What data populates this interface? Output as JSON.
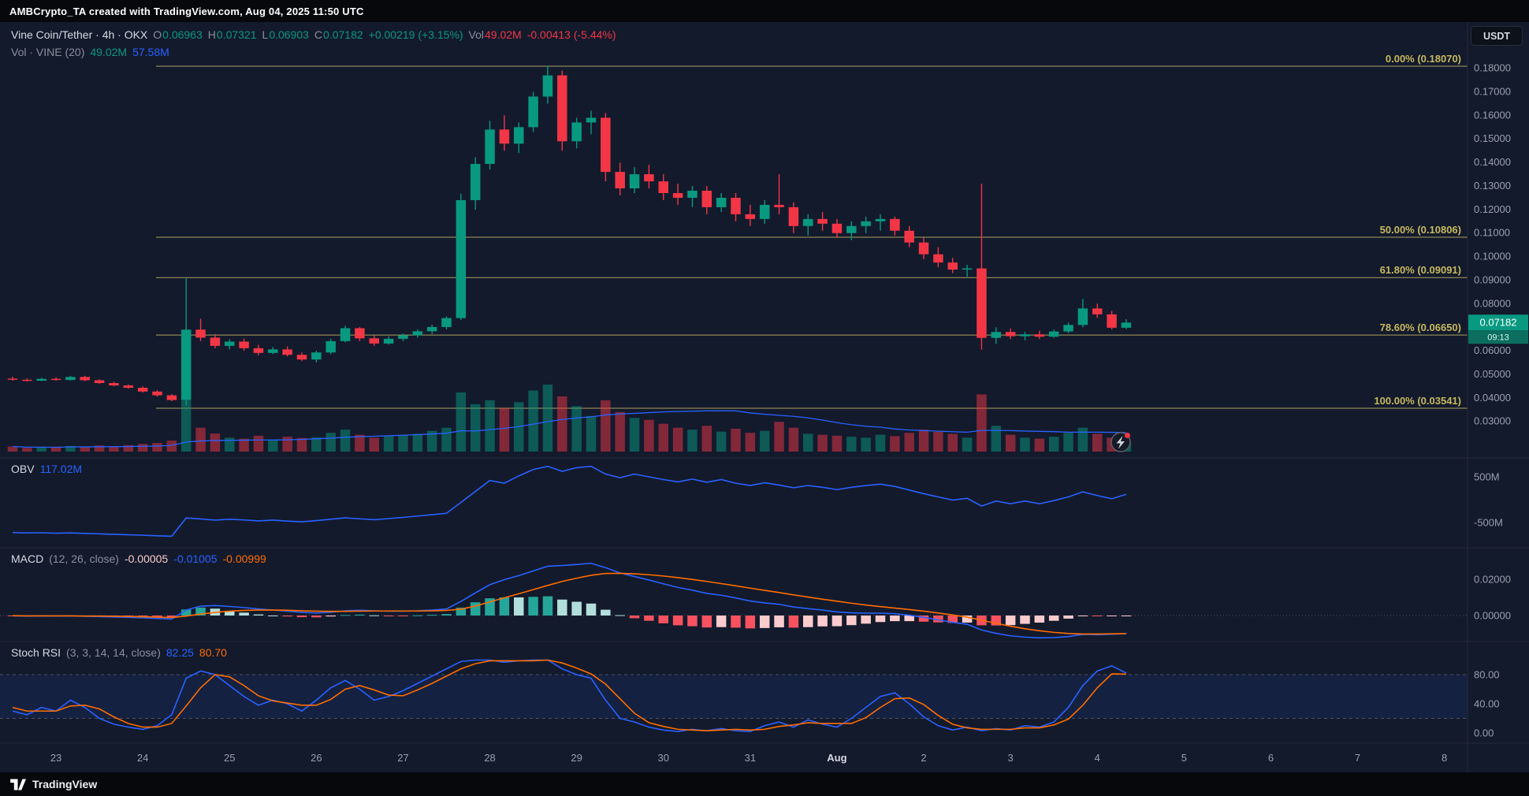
{
  "topbar": {
    "title": "AMBCrypto_TA created with TradingView.com, Aug 04, 2025 11:50 UTC"
  },
  "symbol_legend": {
    "title": "Vine Coin/Tether · 4h · OKX",
    "o_label": "O",
    "o_value": "0.06963",
    "h_label": "H",
    "h_value": "0.07321",
    "l_label": "L",
    "l_value": "0.06903",
    "c_label": "C",
    "c_value": "0.07182",
    "change": "+0.00219 (+3.15%)",
    "vol_label": "Vol",
    "vol_value": "49.02M",
    "vol_change": "-0.00413 (-5.44%)"
  },
  "volume_legend": {
    "title": "Vol · VINE (20)",
    "value": "49.02M",
    "ma_value": "57.58M"
  },
  "obv_legend": {
    "title": "OBV",
    "value": "117.02M"
  },
  "macd_legend": {
    "title": "MACD",
    "params": "(12, 26, close)",
    "hist_value": "-0.00005",
    "macd_value": "-0.01005",
    "signal_value": "-0.00999"
  },
  "stoch_legend": {
    "title": "Stoch RSI",
    "params": "(3, 3, 14, 14, close)",
    "k_value": "82.25",
    "d_value": "80.70"
  },
  "currency_button_label": "USDT",
  "price_badge": {
    "price": "0.07182",
    "countdown": "09:13"
  },
  "footer": {
    "brand": "TradingView"
  },
  "colors": {
    "bg": "#131a2c",
    "separator": "#262b38",
    "axis_text": "#9aa0ab",
    "month_text": "#d6d9e0",
    "up": "#089981",
    "down": "#f23645",
    "vol_up": "rgba(8,153,129,0.5)",
    "vol_down": "rgba(242,54,69,0.5)",
    "line_blue": "#2962ff",
    "line_orange": "#ff6d00",
    "hist_pos_grow": "#26a69a",
    "hist_pos_fall": "#b2dfdb",
    "hist_neg_fall": "#f7525f",
    "hist_neg_rise": "#fccbcd",
    "fib_line": "#aba05f",
    "fib_label": "#c6b95c",
    "band_fill": "rgba(43,98,255,0.10)",
    "band_line": "#4d5160",
    "zero_line": "#4d5160",
    "badge_bg": "#089981",
    "badge_countdown_bg": "#0b6e5e",
    "button_border": "#2a2e39"
  },
  "chart_data": {
    "type": "candlestick",
    "title": "Vine Coin/Tether · 4h · OKX",
    "pair": "VINE/USDT",
    "timeframe": "4h",
    "exchange": "OKX",
    "last_price": 0.07182,
    "price_axis": {
      "labels": [
        "0.18000",
        "0.17000",
        "0.16000",
        "0.15000",
        "0.14000",
        "0.13000",
        "0.12000",
        "0.11000",
        "0.10000",
        "0.09000",
        "0.08000",
        "0.07000",
        "0.06000",
        "0.05000",
        "0.04000",
        "0.03000"
      ],
      "max": 0.18,
      "step": 0.01
    },
    "time_axis": [
      {
        "label": "23",
        "i": 3
      },
      {
        "label": "24",
        "i": 9
      },
      {
        "label": "25",
        "i": 15
      },
      {
        "label": "26",
        "i": 21
      },
      {
        "label": "27",
        "i": 27
      },
      {
        "label": "28",
        "i": 33
      },
      {
        "label": "29",
        "i": 39
      },
      {
        "label": "30",
        "i": 45
      },
      {
        "label": "31",
        "i": 51
      },
      {
        "label": "Aug",
        "i": 57,
        "strong": true
      },
      {
        "label": "2",
        "i": 63
      },
      {
        "label": "3",
        "i": 69
      },
      {
        "label": "4",
        "i": 75
      },
      {
        "label": "5",
        "i": 81
      },
      {
        "label": "6",
        "i": 87
      },
      {
        "label": "7",
        "i": 93
      },
      {
        "label": "8",
        "i": 99
      }
    ],
    "fib_levels": [
      {
        "label": "0.00% (0.18070)",
        "price": 0.1807
      },
      {
        "label": "50.00% (0.10806)",
        "price": 0.10806
      },
      {
        "label": "61.80% (0.09091)",
        "price": 0.09091
      },
      {
        "label": "78.60% (0.06650)",
        "price": 0.0665
      },
      {
        "label": "100.00% (0.03541)",
        "price": 0.03541
      }
    ],
    "candles": [
      [
        0.048,
        0.0488,
        0.0471,
        0.0475
      ],
      [
        0.0475,
        0.0481,
        0.0467,
        0.0471
      ],
      [
        0.0471,
        0.0483,
        0.0469,
        0.0479
      ],
      [
        0.0479,
        0.0485,
        0.0471,
        0.0474
      ],
      [
        0.0474,
        0.0492,
        0.0472,
        0.0487
      ],
      [
        0.0487,
        0.0492,
        0.0469,
        0.0473
      ],
      [
        0.0473,
        0.0477,
        0.0457,
        0.0461
      ],
      [
        0.0461,
        0.0467,
        0.0447,
        0.0451
      ],
      [
        0.0451,
        0.0455,
        0.0437,
        0.0441
      ],
      [
        0.0441,
        0.0447,
        0.0421,
        0.0425
      ],
      [
        0.0425,
        0.0431,
        0.0404,
        0.0409
      ],
      [
        0.0409,
        0.0414,
        0.0384,
        0.0389
      ],
      [
        0.0389,
        0.0905,
        0.0367,
        0.0688
      ],
      [
        0.0688,
        0.0734,
        0.0639,
        0.0654
      ],
      [
        0.0654,
        0.0669,
        0.0609,
        0.0619
      ],
      [
        0.0619,
        0.0647,
        0.0604,
        0.0637
      ],
      [
        0.0637,
        0.0649,
        0.0599,
        0.0609
      ],
      [
        0.0609,
        0.0624,
        0.0579,
        0.0589
      ],
      [
        0.0589,
        0.0614,
        0.0584,
        0.0604
      ],
      [
        0.0604,
        0.0617,
        0.0574,
        0.0581
      ],
      [
        0.0581,
        0.0591,
        0.0554,
        0.0561
      ],
      [
        0.0561,
        0.0599,
        0.0549,
        0.0591
      ],
      [
        0.0591,
        0.0649,
        0.0584,
        0.0639
      ],
      [
        0.0639,
        0.0704,
        0.0634,
        0.0694
      ],
      [
        0.0694,
        0.0699,
        0.0639,
        0.0651
      ],
      [
        0.0651,
        0.0664,
        0.0619,
        0.0629
      ],
      [
        0.0629,
        0.0659,
        0.0624,
        0.0649
      ],
      [
        0.0649,
        0.0671,
        0.0639,
        0.0664
      ],
      [
        0.0664,
        0.0689,
        0.0654,
        0.0681
      ],
      [
        0.0681,
        0.0709,
        0.0669,
        0.0699
      ],
      [
        0.0699,
        0.0744,
        0.0689,
        0.0737
      ],
      [
        0.0737,
        0.1265,
        0.0729,
        0.1238
      ],
      [
        0.1238,
        0.142,
        0.1198,
        0.1392
      ],
      [
        0.1392,
        0.1575,
        0.1368,
        0.1538
      ],
      [
        0.1538,
        0.1598,
        0.1448,
        0.1478
      ],
      [
        0.1478,
        0.1568,
        0.1438,
        0.1548
      ],
      [
        0.1548,
        0.1698,
        0.1528,
        0.1678
      ],
      [
        0.1678,
        0.1807,
        0.1648,
        0.1768
      ],
      [
        0.1768,
        0.1788,
        0.1448,
        0.1488
      ],
      [
        0.1488,
        0.1588,
        0.1458,
        0.1568
      ],
      [
        0.1568,
        0.1618,
        0.1518,
        0.1588
      ],
      [
        0.1588,
        0.1608,
        0.1318,
        0.1358
      ],
      [
        0.1358,
        0.1398,
        0.1258,
        0.1288
      ],
      [
        0.1288,
        0.1378,
        0.1268,
        0.1348
      ],
      [
        0.1348,
        0.1388,
        0.1288,
        0.1318
      ],
      [
        0.1318,
        0.1348,
        0.1238,
        0.1268
      ],
      [
        0.1268,
        0.1308,
        0.1218,
        0.1248
      ],
      [
        0.1248,
        0.1298,
        0.1208,
        0.1278
      ],
      [
        0.1278,
        0.1298,
        0.1178,
        0.1208
      ],
      [
        0.1208,
        0.1268,
        0.1188,
        0.1248
      ],
      [
        0.1248,
        0.1268,
        0.1148,
        0.1178
      ],
      [
        0.1178,
        0.1218,
        0.1128,
        0.1158
      ],
      [
        0.1158,
        0.1238,
        0.1138,
        0.1218
      ],
      [
        0.1218,
        0.1348,
        0.1178,
        0.1208
      ],
      [
        0.1208,
        0.1228,
        0.1098,
        0.1128
      ],
      [
        0.1128,
        0.1178,
        0.1088,
        0.1158
      ],
      [
        0.1158,
        0.1188,
        0.1108,
        0.1138
      ],
      [
        0.1138,
        0.1158,
        0.1078,
        0.1098
      ],
      [
        0.1098,
        0.1148,
        0.1068,
        0.1128
      ],
      [
        0.1128,
        0.1168,
        0.1098,
        0.1148
      ],
      [
        0.1148,
        0.1178,
        0.1108,
        0.1158
      ],
      [
        0.1158,
        0.1168,
        0.1088,
        0.1108
      ],
      [
        0.1108,
        0.1128,
        0.1038,
        0.1058
      ],
      [
        0.1058,
        0.1078,
        0.0988,
        0.1008
      ],
      [
        0.1008,
        0.1038,
        0.0953,
        0.0973
      ],
      [
        0.0973,
        0.0993,
        0.0928,
        0.0943
      ],
      [
        0.0943,
        0.0963,
        0.0913,
        0.0948
      ],
      [
        0.0948,
        0.1308,
        0.0603,
        0.0653
      ],
      [
        0.0653,
        0.0698,
        0.0628,
        0.0678
      ],
      [
        0.0678,
        0.0693,
        0.0648,
        0.066
      ],
      [
        0.066,
        0.0678,
        0.0643,
        0.0668
      ],
      [
        0.0668,
        0.0683,
        0.0648,
        0.0658
      ],
      [
        0.0658,
        0.0688,
        0.0653,
        0.068
      ],
      [
        0.068,
        0.0718,
        0.0673,
        0.0708
      ],
      [
        0.0708,
        0.0818,
        0.0698,
        0.0778
      ],
      [
        0.0778,
        0.0798,
        0.0738,
        0.0753
      ],
      [
        0.0753,
        0.0768,
        0.0689,
        0.0696
      ],
      [
        0.0696,
        0.0732,
        0.069,
        0.0718
      ]
    ],
    "volumes": [
      26,
      19,
      23,
      21,
      29,
      25,
      31,
      27,
      33,
      39,
      44,
      56,
      262,
      122,
      92,
      71,
      66,
      81,
      61,
      76,
      69,
      73,
      96,
      112,
      86,
      71,
      79,
      83,
      91,
      106,
      122,
      302,
      242,
      262,
      222,
      252,
      312,
      342,
      282,
      232,
      182,
      262,
      202,
      172,
      162,
      142,
      122,
      112,
      132,
      102,
      117,
      96,
      106,
      152,
      122,
      91,
      86,
      81,
      76,
      71,
      86,
      79,
      96,
      112,
      101,
      91,
      71,
      292,
      132,
      86,
      71,
      66,
      76,
      96,
      122,
      91,
      71,
      49
    ],
    "obv": {
      "values": [
        -720,
        -728,
        -724,
        -733,
        -727,
        -738,
        -748,
        -758,
        -768,
        -778,
        -790,
        -800,
        -400,
        -422,
        -448,
        -428,
        -444,
        -464,
        -448,
        -468,
        -484,
        -458,
        -428,
        -398,
        -418,
        -438,
        -414,
        -388,
        -358,
        -328,
        -298,
        -60,
        180,
        420,
        360,
        520,
        660,
        730,
        620,
        700,
        730,
        560,
        480,
        560,
        500,
        440,
        390,
        450,
        380,
        440,
        360,
        310,
        370,
        320,
        260,
        310,
        270,
        220,
        270,
        310,
        340,
        290,
        210,
        130,
        60,
        -10,
        30,
        -140,
        -30,
        -90,
        -30,
        -90,
        -20,
        60,
        170,
        90,
        20,
        117
      ],
      "axis": [
        {
          "text": "500M",
          "value": 500
        },
        {
          "text": "-500M",
          "value": -500
        }
      ]
    },
    "macd": {
      "macd": [
        -0.0002,
        -0.0003,
        -0.0002,
        -0.0003,
        -0.0002,
        -0.0004,
        -0.0006,
        -0.0008,
        -0.001,
        -0.0013,
        -0.0016,
        -0.002,
        0.003,
        0.0052,
        0.0055,
        0.005,
        0.0044,
        0.0036,
        0.003,
        0.0024,
        0.0017,
        0.0014,
        0.0018,
        0.0026,
        0.0029,
        0.0026,
        0.0024,
        0.0024,
        0.0026,
        0.003,
        0.0036,
        0.0078,
        0.0125,
        0.017,
        0.0198,
        0.022,
        0.0246,
        0.0272,
        0.0276,
        0.0282,
        0.0288,
        0.0264,
        0.0235,
        0.0215,
        0.0196,
        0.0175,
        0.0155,
        0.014,
        0.0122,
        0.0112,
        0.0097,
        0.008,
        0.007,
        0.0062,
        0.0047,
        0.0038,
        0.003,
        0.002,
        0.0015,
        0.0013,
        0.0013,
        0.001,
        0.0002,
        -0.001,
        -0.0024,
        -0.0038,
        -0.0048,
        -0.008,
        -0.0098,
        -0.0112,
        -0.0119,
        -0.0123,
        -0.0122,
        -0.0116,
        -0.0104,
        -0.0106,
        -0.0103,
        -0.01005
      ],
      "signal": [
        -0.0001,
        -0.0002,
        -0.0002,
        -0.0002,
        -0.0002,
        -0.0003,
        -0.0003,
        -0.0004,
        -0.0005,
        -0.0007,
        -0.0009,
        -0.0011,
        -0.0003,
        0.0008,
        0.0017,
        0.0024,
        0.0028,
        0.003,
        0.003,
        0.0029,
        0.0026,
        0.0024,
        0.0023,
        0.0023,
        0.0024,
        0.0025,
        0.0025,
        0.0025,
        0.0025,
        0.0026,
        0.0028,
        0.0035,
        0.0052,
        0.0075,
        0.0098,
        0.012,
        0.0143,
        0.0166,
        0.0188,
        0.0206,
        0.0222,
        0.0232,
        0.0233,
        0.023,
        0.0225,
        0.0218,
        0.0209,
        0.0199,
        0.0188,
        0.0176,
        0.0164,
        0.0151,
        0.0139,
        0.0127,
        0.0114,
        0.0102,
        0.009,
        0.0079,
        0.0068,
        0.0058,
        0.0049,
        0.0041,
        0.0033,
        0.0024,
        0.0014,
        0.0003,
        -0.0009,
        -0.0026,
        -0.0043,
        -0.0059,
        -0.0073,
        -0.0084,
        -0.0093,
        -0.0099,
        -0.0102,
        -0.0102,
        -0.0101,
        -0.00999
      ],
      "axis": [
        {
          "text": "0.02000",
          "value": 0.02
        },
        {
          "text": "0.00000",
          "value": 0
        }
      ]
    },
    "stoch": {
      "k": [
        30,
        25,
        35,
        30,
        45,
        35,
        20,
        12,
        8,
        5,
        10,
        25,
        75,
        85,
        80,
        65,
        50,
        38,
        45,
        40,
        30,
        45,
        62,
        72,
        60,
        45,
        50,
        58,
        68,
        78,
        88,
        98,
        100,
        100,
        97,
        99,
        100,
        100,
        88,
        80,
        75,
        45,
        20,
        15,
        8,
        4,
        2,
        5,
        3,
        6,
        3,
        2,
        10,
        15,
        8,
        18,
        12,
        8,
        20,
        35,
        50,
        55,
        40,
        22,
        10,
        4,
        8,
        3,
        6,
        4,
        10,
        8,
        15,
        35,
        65,
        85,
        92,
        82.25
      ],
      "d": [
        35,
        30,
        30,
        30,
        37,
        38,
        33,
        22,
        13,
        8,
        8,
        13,
        37,
        62,
        80,
        77,
        65,
        51,
        44,
        41,
        38,
        38,
        46,
        60,
        65,
        59,
        52,
        51,
        59,
        68,
        78,
        88,
        95,
        99,
        99,
        99,
        99,
        100,
        96,
        89,
        81,
        67,
        47,
        27,
        14,
        9,
        5,
        4,
        3,
        4,
        5,
        4,
        5,
        9,
        11,
        14,
        13,
        13,
        13,
        21,
        35,
        47,
        48,
        39,
        24,
        12,
        7,
        5,
        5,
        5,
        7,
        7,
        11,
        19,
        38,
        62,
        81,
        80.7
      ],
      "axis": [
        {
          "text": "80.00",
          "value": 80
        },
        {
          "text": "40.00",
          "value": 40
        },
        {
          "text": "0.00",
          "value": 0
        }
      ],
      "bands": [
        80,
        20
      ]
    }
  }
}
